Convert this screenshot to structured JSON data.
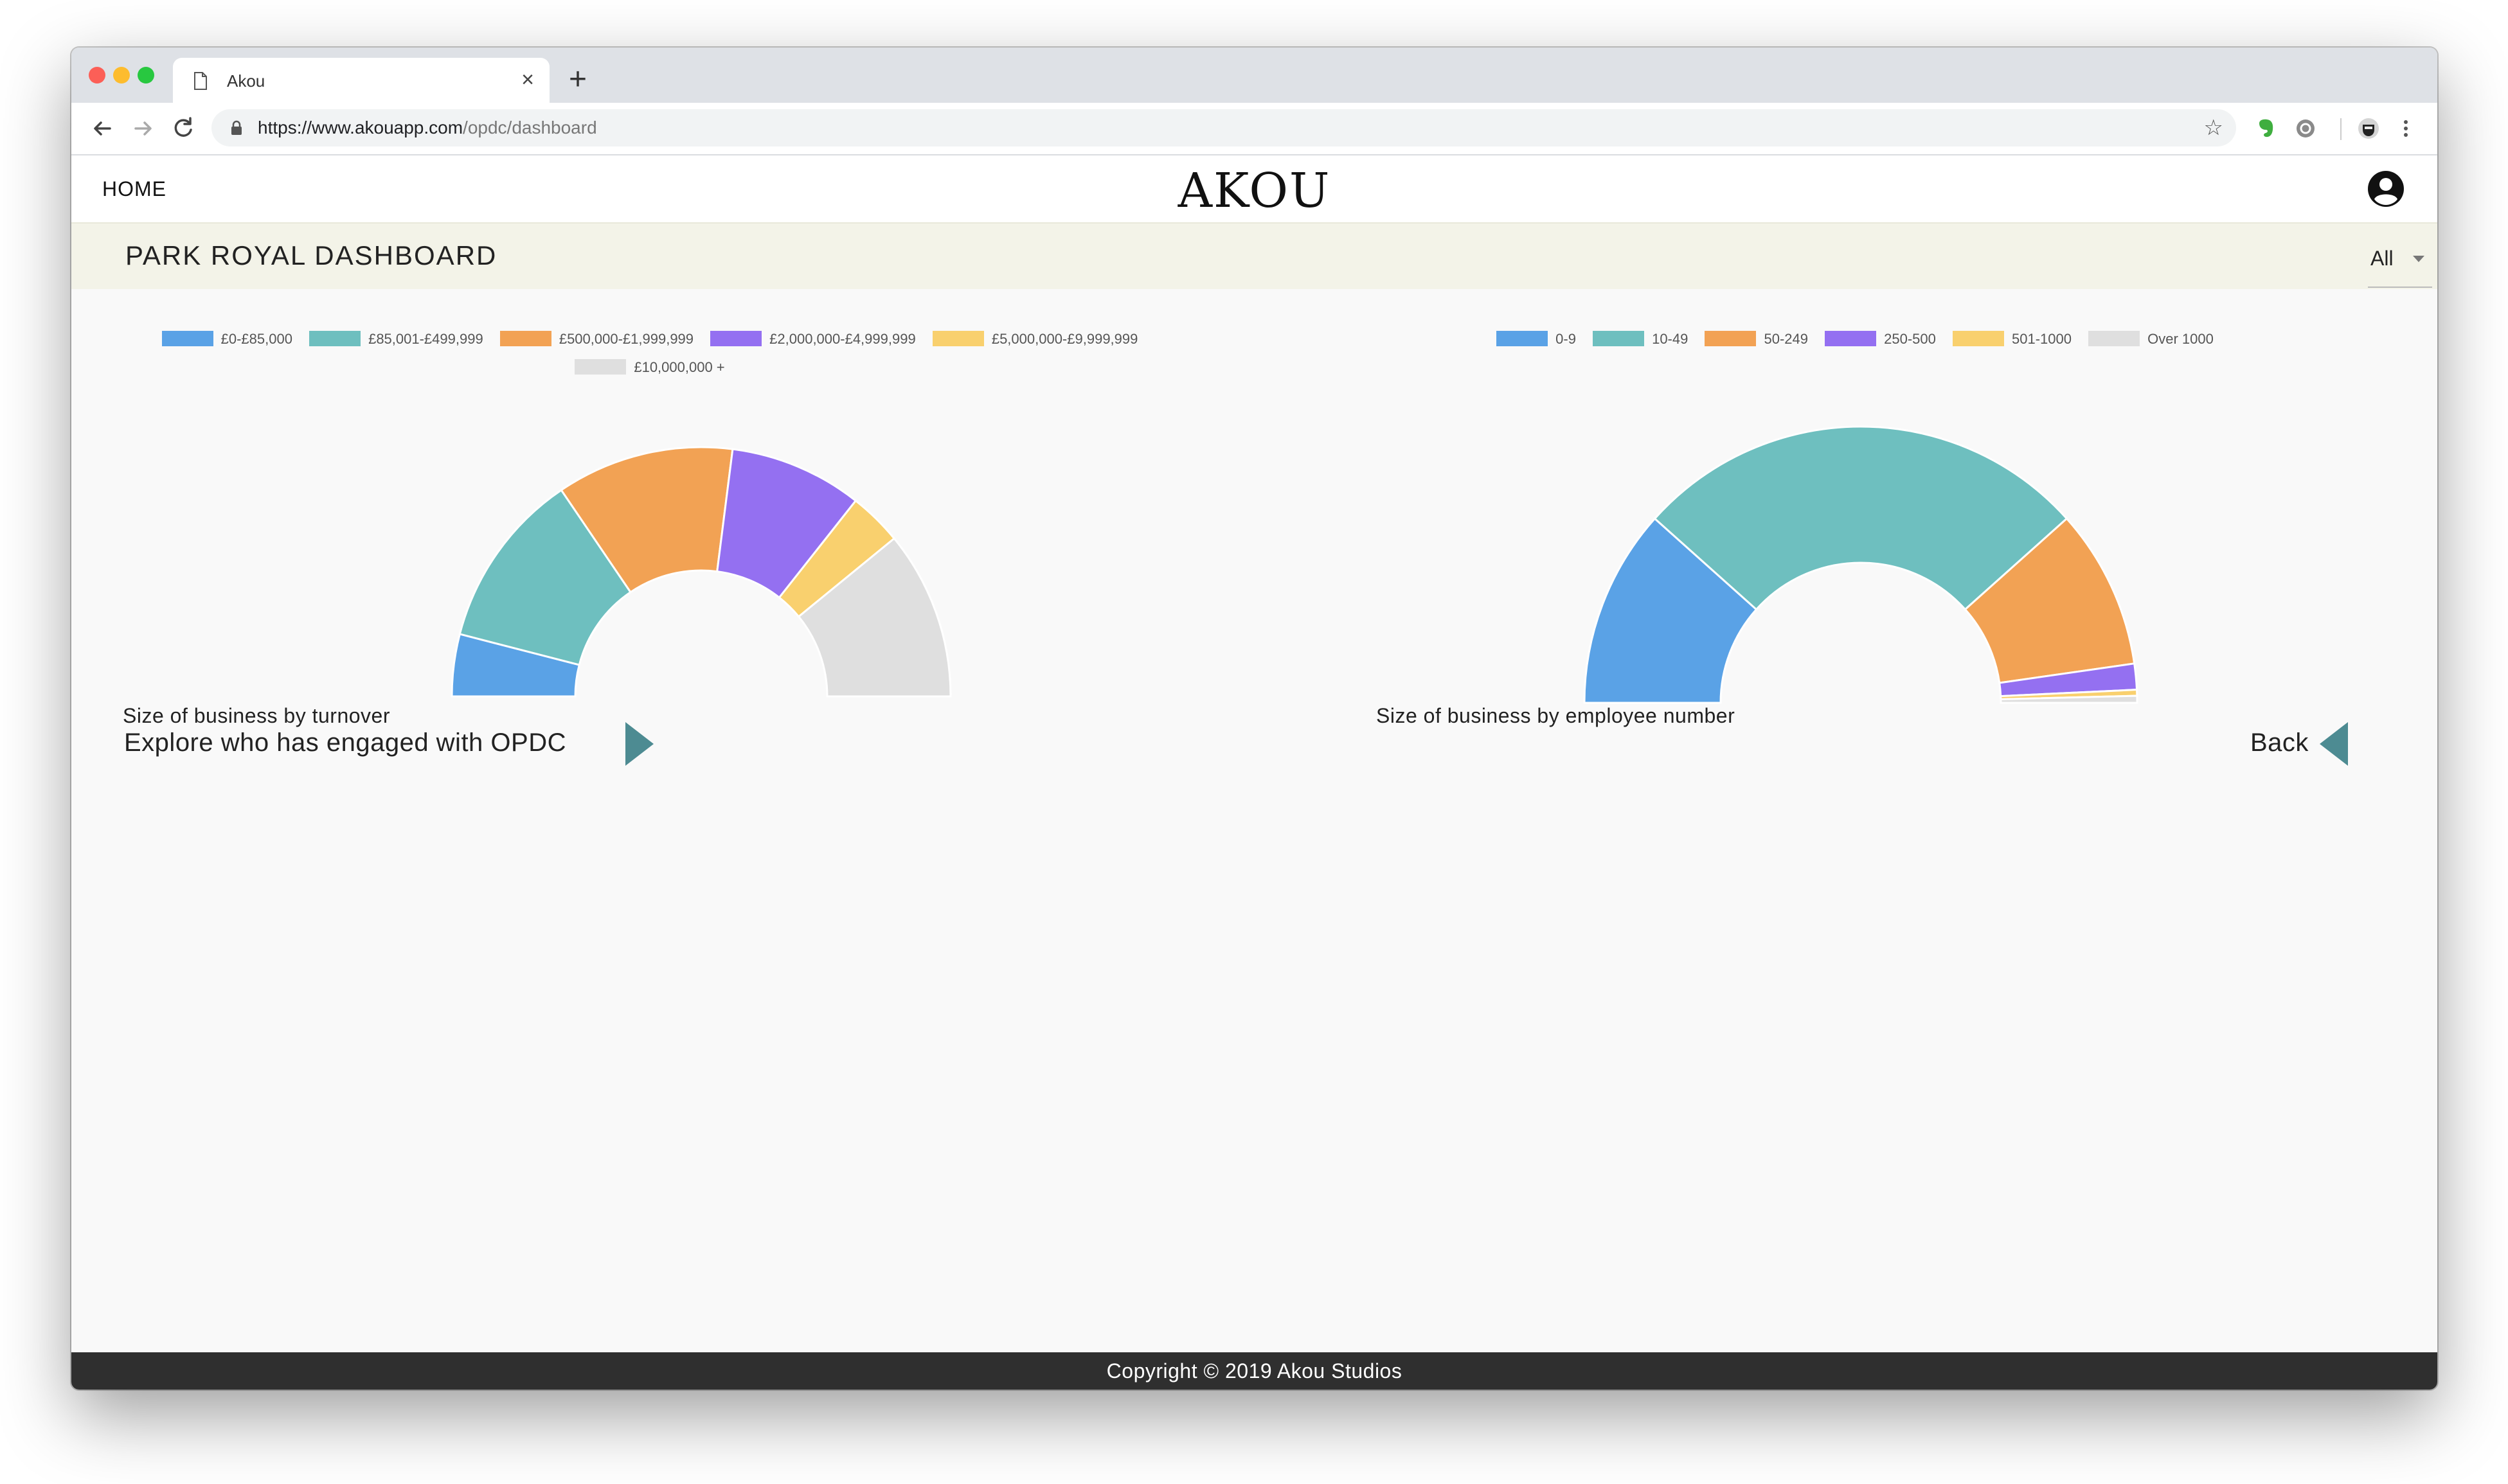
{
  "browser": {
    "tab_title": "Akou",
    "url_host": "https://www.akouapp.com",
    "url_path": "/opdc/dashboard"
  },
  "header": {
    "home_label": "HOME",
    "logo": "AKOU"
  },
  "subheader": {
    "title": "PARK ROYAL DASHBOARD",
    "filter_value": "All"
  },
  "chart_data": [
    {
      "type": "pie",
      "variant": "half-doughnut",
      "title": "Size of business by turnover",
      "legend_placement": "top",
      "categories": [
        "£0-£85,000",
        "£85,001-£499,999",
        "£500,000-£1,999,999",
        "£2,000,000-£4,999,999",
        "£5,000,000-£9,999,999",
        "£10,000,000 +"
      ],
      "values": [
        7,
        20,
        20,
        15,
        6,
        19
      ],
      "colors": [
        "#5aa2e6",
        "#6ebfbf",
        "#f2a254",
        "#9470f1",
        "#f9d06e",
        "#dfdfdf"
      ]
    },
    {
      "type": "pie",
      "variant": "half-doughnut",
      "title": "Size of business by employee number",
      "legend_placement": "top",
      "categories": [
        "0-9",
        "10-49",
        "50-249",
        "250-500",
        "501-1000",
        "Over 1000"
      ],
      "values": [
        23,
        53,
        18.5,
        3,
        0.7,
        0.8
      ],
      "colors": [
        "#5aa2e6",
        "#6ebfbf",
        "#f2a254",
        "#9470f1",
        "#f9d06e",
        "#dfdfdf"
      ]
    }
  ],
  "nav": {
    "explore_label": "Explore who has engaged with OPDC",
    "back_label": "Back"
  },
  "footer": {
    "copyright": "Copyright © 2019 Akou Studios"
  }
}
